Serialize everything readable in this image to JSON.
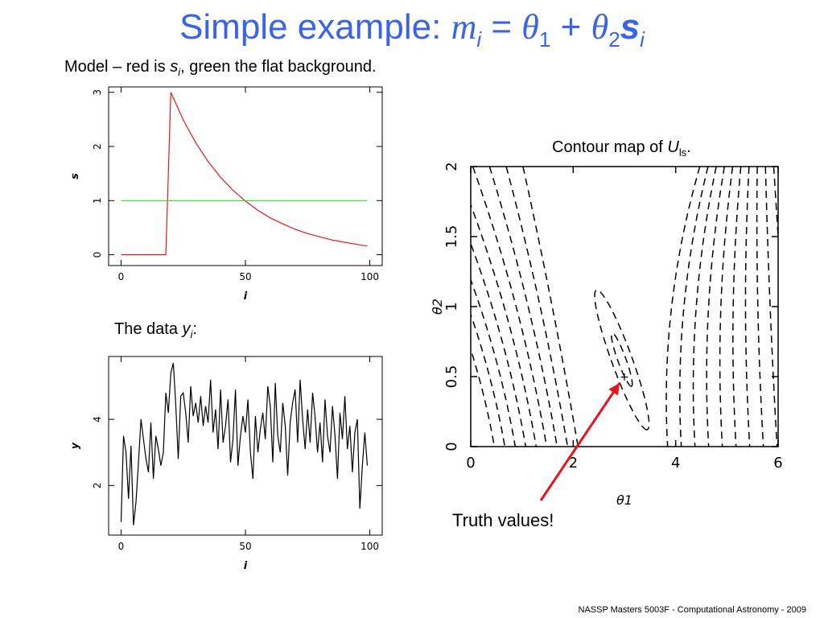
{
  "slide": {
    "title_prefix": "Simple example:",
    "title_m": "m",
    "title_i": "i",
    "title_eq": "=",
    "title_theta": "θ",
    "title_sub1": "1",
    "title_plus": "+",
    "title_sub2": "2",
    "title_s": "s",
    "footer": "NASSP Masters 5003F - Computational Astronomy - 2009"
  },
  "model_caption": {
    "prefix": "Model – red is",
    "s": "s",
    "sub": "i",
    "suffix": ", green the flat background."
  },
  "data_caption": {
    "prefix": "The data",
    "y": "y",
    "sub": "i",
    "suffix": ":"
  },
  "contour_caption": {
    "prefix": "Contour map of",
    "u": "U",
    "sub": "ls",
    "suffix": "."
  },
  "annotation": {
    "label": "Truth values!",
    "marker": "+",
    "arrow_color": "#e8141c"
  },
  "chart_data": [
    {
      "id": "model",
      "type": "line",
      "xlabel": "i",
      "ylabel": "s",
      "xlim": [
        -5,
        105
      ],
      "ylim": [
        -0.2,
        3.1
      ],
      "xticks": [
        0,
        50,
        100
      ],
      "yticks": [
        0,
        1,
        2,
        3
      ],
      "series": [
        {
          "color": "#e41a1c",
          "x": [
            0,
            17,
            18,
            20,
            25,
            30,
            35,
            40,
            45,
            50,
            55,
            60,
            65,
            70,
            75,
            80,
            85,
            90,
            95,
            99
          ],
          "y": [
            0,
            0,
            0,
            3.0,
            2.49,
            2.07,
            1.72,
            1.43,
            1.19,
            0.99,
            0.82,
            0.68,
            0.57,
            0.47,
            0.39,
            0.33,
            0.27,
            0.23,
            0.19,
            0.16
          ]
        },
        {
          "color": "#3ad13a",
          "x": [
            0,
            99
          ],
          "y": [
            1,
            1
          ]
        }
      ]
    },
    {
      "id": "data",
      "type": "line",
      "xlabel": "i",
      "ylabel": "y",
      "xlim": [
        -5,
        105
      ],
      "ylim": [
        0.5,
        5.9
      ],
      "xticks": [
        0,
        50,
        100
      ],
      "yticks": [
        2,
        4
      ],
      "series": [
        {
          "color": "#000000",
          "x": [
            0,
            1,
            2,
            3,
            4,
            5,
            6,
            7,
            8,
            9,
            10,
            11,
            12,
            13,
            14,
            15,
            16,
            17,
            18,
            19,
            20,
            21,
            22,
            23,
            24,
            25,
            26,
            27,
            28,
            29,
            30,
            31,
            32,
            33,
            34,
            35,
            36,
            37,
            38,
            39,
            40,
            41,
            42,
            43,
            44,
            45,
            46,
            47,
            48,
            49,
            50,
            51,
            52,
            53,
            54,
            55,
            56,
            57,
            58,
            59,
            60,
            61,
            62,
            63,
            64,
            65,
            66,
            67,
            68,
            69,
            70,
            71,
            72,
            73,
            74,
            75,
            76,
            77,
            78,
            79,
            80,
            81,
            82,
            83,
            84,
            85,
            86,
            87,
            88,
            89,
            90,
            91,
            92,
            93,
            94,
            95,
            96,
            97,
            98,
            99
          ],
          "y": [
            0.9,
            3.5,
            3.0,
            1.6,
            3.2,
            0.8,
            1.5,
            2.7,
            4.0,
            3.4,
            2.8,
            2.4,
            3.9,
            2.2,
            3.5,
            3.1,
            2.6,
            3.0,
            4.8,
            4.2,
            5.4,
            5.7,
            4.4,
            2.8,
            4.7,
            4.8,
            4.2,
            3.3,
            5.0,
            4.1,
            4.5,
            3.9,
            4.7,
            3.8,
            4.4,
            3.9,
            5.2,
            3.6,
            4.3,
            3.1,
            4.9,
            3.3,
            3.8,
            4.6,
            2.7,
            3.4,
            4.9,
            2.6,
            3.5,
            4.1,
            3.6,
            4.6,
            3.0,
            2.2,
            4.1,
            3.0,
            3.7,
            4.2,
            3.4,
            5.0,
            4.4,
            2.7,
            5.1,
            3.5,
            3.0,
            4.5,
            3.8,
            2.3,
            3.9,
            4.5,
            4.9,
            3.3,
            5.2,
            4.0,
            3.1,
            4.3,
            3.3,
            4.8,
            4.1,
            3.0,
            3.9,
            2.7,
            4.6,
            3.5,
            3.0,
            4.4,
            3.5,
            2.2,
            4.2,
            3.4,
            4.7,
            3.1,
            3.8,
            2.4,
            3.6,
            4.0,
            1.3,
            2.6,
            3.6,
            2.6
          ]
        }
      ]
    },
    {
      "id": "contour",
      "type": "contour",
      "xlabel": "θ1",
      "ylabel": "θ2",
      "xlim": [
        0,
        6
      ],
      "ylim": [
        0,
        2
      ],
      "xticks": [
        0,
        2,
        4,
        6
      ],
      "yticks": [
        0,
        0.5,
        1,
        1.5,
        2
      ],
      "line_style": "dashed",
      "truth": {
        "x": 3.0,
        "y": 0.5
      },
      "contours": [
        {
          "level": 1,
          "center": [
            2.95,
            0.62
          ],
          "a": 0.55,
          "b": 0.08,
          "angle_deg": 110
        },
        {
          "level": 2,
          "center": [
            2.95,
            0.62
          ],
          "a": 1.45,
          "b": 0.2,
          "angle_deg": 110
        }
      ]
    }
  ]
}
